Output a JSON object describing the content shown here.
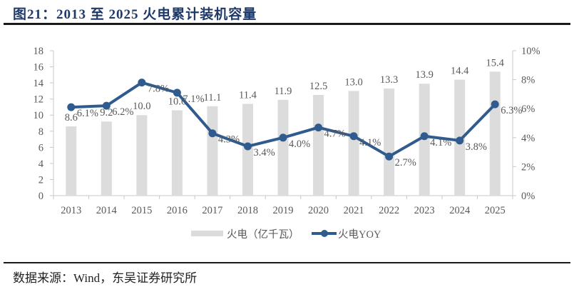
{
  "header": {
    "title": "图21：2013 至 2025 火电累计装机容量"
  },
  "footer": {
    "source": "数据来源：Wind，东吴证券研究所"
  },
  "colors": {
    "bar": "#dcdcdc",
    "line": "#2f5b8f",
    "axis": "#c8c8c8",
    "text": "#595959",
    "title": "#1f3a68"
  },
  "chart_data": {
    "type": "bar+line",
    "title": "2013 至 2025 火电累计装机容量",
    "categories": [
      "2013",
      "2014",
      "2015",
      "2016",
      "2017",
      "2018",
      "2019",
      "2020",
      "2021",
      "2022",
      "2023",
      "2024",
      "2025"
    ],
    "series": [
      {
        "name": "火电（亿千瓦）",
        "type": "bar",
        "axis": "left",
        "values": [
          8.6,
          9.2,
          10.0,
          10.6,
          11.1,
          11.4,
          11.9,
          12.5,
          13.0,
          13.3,
          13.9,
          14.4,
          15.4
        ],
        "labels": [
          "8.6",
          "9.2",
          "10.0",
          "10.6",
          "11.1",
          "11.4",
          "11.9",
          "12.5",
          "13.0",
          "13.3",
          "13.9",
          "14.4",
          "15.4"
        ]
      },
      {
        "name": "火电YOY",
        "type": "line",
        "axis": "right",
        "values": [
          6.1,
          6.2,
          7.8,
          7.1,
          4.3,
          3.4,
          4.0,
          4.7,
          4.1,
          2.7,
          4.1,
          3.8,
          6.3
        ],
        "labels": [
          "6.1%",
          "6.2%",
          "7.8%",
          "7.1%",
          "4.3%",
          "3.4%",
          "4.0%",
          "4.7%",
          "4.1%",
          "2.7%",
          "4.1%",
          "3.8%",
          "6.3%"
        ]
      }
    ],
    "y_left": {
      "min": 0,
      "max": 18,
      "step": 2,
      "ticks": [
        "0",
        "2",
        "4",
        "6",
        "8",
        "10",
        "12",
        "14",
        "16",
        "18"
      ]
    },
    "y_right": {
      "min": 0,
      "max": 10,
      "step": 2,
      "ticks": [
        "0%",
        "2%",
        "4%",
        "6%",
        "8%",
        "10%"
      ]
    },
    "xlabel": "",
    "ylabel_left": "",
    "ylabel_right": "",
    "grid": false,
    "legend_position": "bottom",
    "legend": [
      "火电（亿千瓦）",
      "火电YOY"
    ]
  }
}
